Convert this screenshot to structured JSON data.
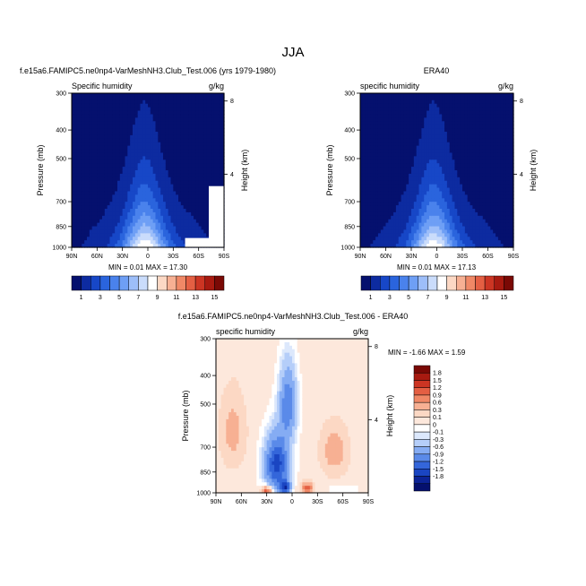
{
  "figure": {
    "title": "JJA"
  },
  "panels": [
    {
      "id": "model",
      "header": "f.e15a6.FAMIPC5.ne0np4-VarMeshNH3.Club_Test.006 (yrs 1979-1980)",
      "left_label": "Specific humidity",
      "right_label": "g/kg",
      "ylabel": "Pressure (mb)",
      "y2label": "Height (km)",
      "stats": "MIN =  0.01  MAX =  17.30"
    },
    {
      "id": "obs",
      "header": "ERA40",
      "left_label": "specific humidity",
      "right_label": "g/kg",
      "ylabel": "Pressure (mb)",
      "y2label": "Height (km)",
      "stats": "MIN =  0.01  MAX =  17.13"
    },
    {
      "id": "diff",
      "header": "f.e15a6.FAMIPC5.ne0np4-VarMeshNH3.Club_Test.006 - ERA40",
      "left_label": "specific humidity",
      "right_label": "g/kg",
      "ylabel": "Pressure (mb)",
      "y2label": "Height (km)",
      "stats": "MIN = -1.66  MAX =  1.59"
    }
  ],
  "chart_data": [
    {
      "type": "heatmap",
      "title": "f.e15a6.FAMIPC5.ne0np4-VarMeshNH3.Club_Test.006 (yrs 1979-1980)",
      "variable": "Specific humidity",
      "units": "g/kg",
      "xlabel": "",
      "ylabel": "Pressure (mb)",
      "y2label": "Height (km)",
      "x_ticks": [
        "90N",
        "60N",
        "30N",
        "0",
        "30S",
        "60S",
        "90S"
      ],
      "x_range": [
        90,
        -90
      ],
      "y_ticks": [
        300,
        400,
        500,
        700,
        850,
        1000
      ],
      "y_range": [
        1000,
        300
      ],
      "y_scale": "log",
      "y2_ticks": [
        4,
        8
      ],
      "min": 0.01,
      "max": 17.3,
      "levels": [
        1,
        3,
        5,
        7,
        9,
        11,
        13,
        15
      ],
      "field": {
        "peak_lat": 4,
        "peak_value": 17.3,
        "scale_height_factor": 2.5
      }
    },
    {
      "type": "heatmap",
      "title": "ERA40",
      "variable": "specific humidity",
      "units": "g/kg",
      "xlabel": "",
      "ylabel": "Pressure (mb)",
      "y2label": "Height (km)",
      "x_ticks": [
        "90N",
        "60N",
        "30N",
        "0",
        "30S",
        "60S",
        "90S"
      ],
      "x_range": [
        90,
        -90
      ],
      "y_ticks": [
        300,
        400,
        500,
        700,
        850,
        1000
      ],
      "y_range": [
        1000,
        300
      ],
      "y_scale": "log",
      "y2_ticks": [
        4,
        8
      ],
      "min": 0.01,
      "max": 17.13,
      "levels": [
        1,
        3,
        5,
        7,
        9,
        11,
        13,
        15
      ],
      "field": {
        "peak_lat": 4,
        "peak_value": 17.13,
        "scale_height_factor": 2.5
      }
    },
    {
      "type": "heatmap",
      "title": "f.e15a6.FAMIPC5.ne0np4-VarMeshNH3.Club_Test.006 - ERA40",
      "variable": "specific humidity",
      "units": "g/kg",
      "xlabel": "",
      "ylabel": "Pressure (mb)",
      "y2label": "Height (km)",
      "x_ticks": [
        "90N",
        "60N",
        "30N",
        "0",
        "30S",
        "60S",
        "90S"
      ],
      "x_range": [
        90,
        -90
      ],
      "y_ticks": [
        300,
        400,
        500,
        700,
        850,
        1000
      ],
      "y_range": [
        1000,
        300
      ],
      "y_scale": "log",
      "y2_ticks": [
        4,
        8
      ],
      "min": -1.66,
      "max": 1.59,
      "levels": [
        -1.8,
        -1.5,
        -1.2,
        -0.9,
        -0.6,
        -0.3,
        -0.1,
        0,
        0.1,
        0.3,
        0.6,
        0.9,
        1.2,
        1.5,
        1.8
      ]
    }
  ],
  "colorbars": {
    "full": {
      "labels": [
        "1",
        "3",
        "5",
        "7",
        "9",
        "11",
        "13",
        "15"
      ],
      "colors": [
        "#05106e",
        "#0d2ba0",
        "#1747c7",
        "#2a64dd",
        "#4a82ec",
        "#6e9ff5",
        "#9dbef9",
        "#cadcfb",
        "#ffffff",
        "#fcd8c4",
        "#f7b093",
        "#f08866",
        "#e45f43",
        "#cc3523",
        "#a81a10",
        "#7a0905"
      ]
    },
    "diff": {
      "labels": [
        "1.8",
        "1.5",
        "1.2",
        "0.9",
        "0.6",
        "0.3",
        "0.1",
        "0",
        "-0.1",
        "-0.3",
        "-0.6",
        "-0.9",
        "-1.2",
        "-1.5",
        "-1.8"
      ],
      "colors": [
        "#7a0905",
        "#a81a10",
        "#cc3523",
        "#e45f43",
        "#f08866",
        "#f7b093",
        "#fcd8c4",
        "#fde8dc",
        "#ffffff",
        "#dce8fc",
        "#b5cef9",
        "#85acf3",
        "#5a8ae9",
        "#3466da",
        "#1a45c2",
        "#0c2396",
        "#05106e"
      ]
    }
  },
  "missing_fill": "#ffffff"
}
